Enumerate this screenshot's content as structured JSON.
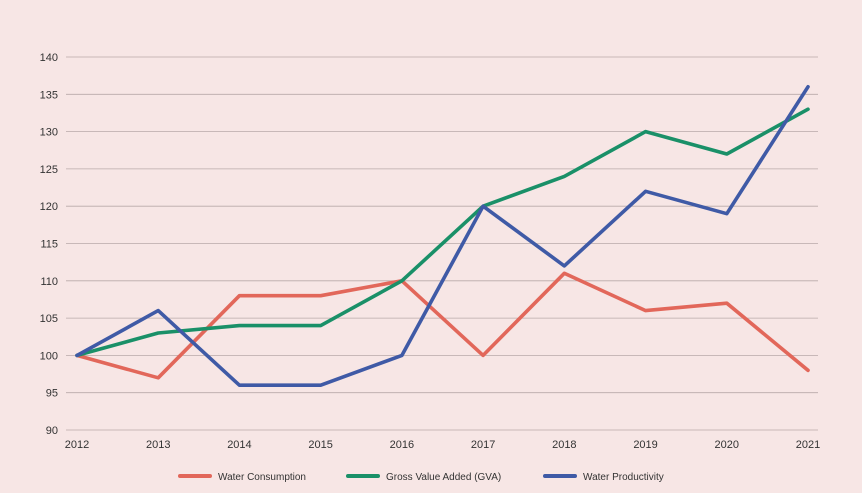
{
  "chart_data": {
    "type": "line",
    "x": [
      "2012",
      "2013",
      "2014",
      "2015",
      "2016",
      "2017",
      "2018",
      "2019",
      "2020",
      "2021"
    ],
    "ylim": [
      90,
      140
    ],
    "yticks": [
      90,
      95,
      100,
      105,
      110,
      115,
      120,
      125,
      130,
      135,
      140
    ],
    "grid": true,
    "legend_position": "bottom",
    "title": "",
    "xlabel": "",
    "ylabel": "",
    "series": [
      {
        "name": "Water Consumption",
        "color": "#e2675a",
        "values": [
          100,
          97,
          108,
          108,
          110,
          100,
          111,
          106,
          107,
          98
        ]
      },
      {
        "name": "Gross Value Added (GVA)",
        "color": "#1a9068",
        "values": [
          100,
          103,
          104,
          104,
          110,
          120,
          124,
          130,
          127,
          133
        ]
      },
      {
        "name": "Water Productivity",
        "color": "#3f5aa6",
        "values": [
          100,
          106,
          96,
          96,
          100,
          120,
          112,
          122,
          119,
          136
        ]
      }
    ]
  }
}
